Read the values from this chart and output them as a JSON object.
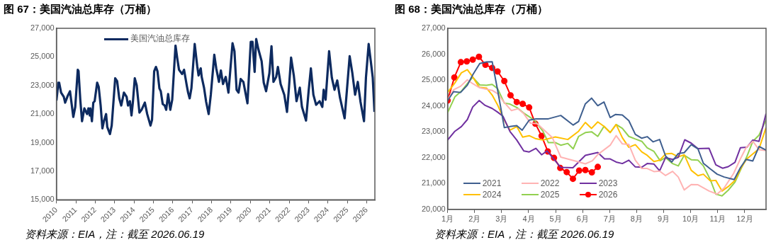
{
  "chart_data": [
    {
      "type": "line",
      "title": "图 67：美国汽油总库存（万桶）",
      "annotations": [
        "资料来源：EIA，注：截至 2026.06.19"
      ],
      "xlim": [
        2010,
        2026.42
      ],
      "xticks": [
        2010,
        2011,
        2012,
        2013,
        2014,
        2015,
        2016,
        2017,
        2018,
        2019,
        2020,
        2021,
        2022,
        2023,
        2024,
        2025,
        2026
      ],
      "ylim": [
        15000,
        27000
      ],
      "yticks": [
        {
          "value": 15000,
          "label": "15,000"
        },
        {
          "value": 17000,
          "label": "17,000"
        },
        {
          "value": 19000,
          "label": "19,000"
        },
        {
          "value": 21000,
          "label": "21,000"
        },
        {
          "value": 23000,
          "label": "23,000"
        },
        {
          "value": 25000,
          "label": "25,000"
        },
        {
          "value": 27000,
          "label": "27,000"
        }
      ],
      "grid": false,
      "legend": "top",
      "series": [
        {
          "name": "美国汽油总库存",
          "color": "#0d2a5f",
          "x": [
            2010.0,
            2010.1,
            2010.14,
            2010.24,
            2010.38,
            2010.45,
            2010.59,
            2010.7,
            2010.87,
            2010.97,
            2011.1,
            2011.14,
            2011.23,
            2011.32,
            2011.44,
            2011.58,
            2011.65,
            2011.72,
            2011.75,
            2011.83,
            2011.9,
            2011.97,
            2012.1,
            2012.18,
            2012.28,
            2012.37,
            2012.45,
            2012.56,
            2012.62,
            2012.76,
            2012.85,
            2013.03,
            2013.13,
            2013.24,
            2013.34,
            2013.48,
            2013.62,
            2013.69,
            2013.79,
            2013.87,
            2013.94,
            2014.04,
            2014.14,
            2014.28,
            2014.39,
            2014.56,
            2014.68,
            2014.85,
            2014.93,
            2015.04,
            2015.13,
            2015.21,
            2015.31,
            2015.38,
            2015.48,
            2015.58,
            2015.66,
            2015.76,
            2015.87,
            2015.97,
            2016.14,
            2016.23,
            2016.32,
            2016.48,
            2016.58,
            2016.72,
            2016.79,
            2016.87,
            2016.96,
            2017.13,
            2017.26,
            2017.33,
            2017.44,
            2017.49,
            2017.61,
            2017.72,
            2017.85,
            2017.96,
            2018.14,
            2018.24,
            2018.38,
            2018.48,
            2018.59,
            2018.73,
            2018.87,
            2019.08,
            2019.18,
            2019.29,
            2019.39,
            2019.5,
            2019.64,
            2019.85,
            2020.02,
            2020.11,
            2020.22,
            2020.3,
            2020.41,
            2020.58,
            2020.69,
            2020.81,
            2020.98,
            2021.09,
            2021.19,
            2021.33,
            2021.42,
            2021.56,
            2021.75,
            2021.89,
            2021.99,
            2022.1,
            2022.24,
            2022.38,
            2022.55,
            2022.66,
            2022.87,
            2023.01,
            2023.12,
            2023.25,
            2023.39,
            2023.57,
            2023.71,
            2023.78,
            2023.88,
            2024.06,
            2024.2,
            2024.34,
            2024.48,
            2024.62,
            2024.86,
            2024.98,
            2025.12,
            2025.26,
            2025.4,
            2025.54,
            2025.68,
            2025.86,
            2025.96,
            2026.1,
            2026.24,
            2026.31,
            2026.4
          ],
          "values": [
            21950,
            23200,
            23200,
            22500,
            22200,
            21800,
            22300,
            22600,
            20800,
            21500,
            24100,
            24000,
            22000,
            20500,
            21400,
            21000,
            21400,
            20900,
            21400,
            20500,
            21800,
            21900,
            23200,
            22900,
            21600,
            20000,
            20500,
            21000,
            20100,
            19600,
            20200,
            23500,
            23300,
            22100,
            21600,
            22500,
            22200,
            21600,
            21900,
            20900,
            21800,
            23500,
            23000,
            21100,
            21300,
            21800,
            21000,
            20200,
            20600,
            24000,
            24300,
            24000,
            22800,
            22600,
            21700,
            21600,
            21300,
            22400,
            21300,
            22000,
            25800,
            24900,
            24100,
            23800,
            24100,
            23000,
            22500,
            22100,
            22800,
            25900,
            24350,
            23700,
            24200,
            23600,
            22850,
            21850,
            21000,
            22350,
            25150,
            24200,
            23250,
            24050,
            23100,
            23600,
            22500,
            25950,
            25400,
            22700,
            22500,
            23450,
            23250,
            21750,
            26050,
            26050,
            23950,
            26250,
            25550,
            24700,
            23200,
            22600,
            23850,
            25750,
            23250,
            23600,
            24300,
            23100,
            22350,
            21150,
            22850,
            24950,
            23700,
            21900,
            22850,
            21500,
            20550,
            22700,
            24200,
            22350,
            21650,
            21900,
            21500,
            22700,
            22000,
            25400,
            23550,
            22700,
            23350,
            22150,
            20700,
            22700,
            25050,
            23850,
            22350,
            23250,
            21850,
            20500,
            23550,
            25900,
            24350,
            23550,
            21150
          ]
        }
      ]
    },
    {
      "type": "line",
      "title": "图 68：美国汽油总库存（万桶）",
      "annotations": [
        "资料来源：EIA，注：截至 2026.06.19"
      ],
      "xlim": [
        1,
        12.79
      ],
      "xticks": [
        {
          "value": 1,
          "label": "1月"
        },
        {
          "value": 2,
          "label": "2月"
        },
        {
          "value": 3,
          "label": "3月"
        },
        {
          "value": 4,
          "label": "4月"
        },
        {
          "value": 5,
          "label": "5月"
        },
        {
          "value": 6,
          "label": "6月"
        },
        {
          "value": 7,
          "label": "7月"
        },
        {
          "value": 8,
          "label": "8月"
        },
        {
          "value": 9,
          "label": "9月"
        },
        {
          "value": 10,
          "label": "10月"
        },
        {
          "value": 11,
          "label": "11月"
        },
        {
          "value": 12,
          "label": "12月"
        }
      ],
      "ylim": [
        20000,
        27000
      ],
      "yticks": [
        {
          "value": 20000,
          "label": "20,000"
        },
        {
          "value": 21000,
          "label": "21,000"
        },
        {
          "value": 22000,
          "label": "22,000"
        },
        {
          "value": 23000,
          "label": "23,000"
        },
        {
          "value": 24000,
          "label": "24,000"
        },
        {
          "value": 25000,
          "label": "25,000"
        },
        {
          "value": 26000,
          "label": "26,000"
        },
        {
          "value": 27000,
          "label": "27,000"
        }
      ],
      "grid": false,
      "legend": "bottom left",
      "series": [
        {
          "name": "2021",
          "color": "#3f5f8f",
          "x": [
            1.0,
            1.22,
            1.48,
            1.73,
            1.93,
            2.19,
            2.44,
            2.65,
            2.85,
            3.1,
            3.31,
            3.56,
            3.76,
            4.02,
            4.27,
            4.73,
            5.19,
            5.65,
            5.85,
            6.1,
            6.33,
            6.56,
            6.79,
            7.02,
            7.22,
            7.47,
            7.71,
            7.95,
            8.19,
            8.39,
            8.61,
            8.85,
            9.07,
            9.3,
            9.54,
            9.76,
            10.02,
            10.27,
            10.47,
            10.73,
            10.98,
            11.24,
            11.61,
            11.84,
            12.05,
            12.3,
            12.53,
            12.79
          ],
          "values": [
            24200,
            24550,
            24520,
            24800,
            25200,
            25640,
            25700,
            25710,
            24620,
            23160,
            23200,
            23240,
            23060,
            23450,
            23500,
            23500,
            23630,
            23260,
            23400,
            24080,
            24300,
            24010,
            24150,
            23550,
            23670,
            23650,
            23430,
            22900,
            22750,
            22810,
            22610,
            22700,
            22060,
            21830,
            22160,
            22190,
            22500,
            22340,
            21780,
            21560,
            21360,
            21250,
            21150,
            21610,
            21930,
            21870,
            22430,
            22290
          ]
        },
        {
          "name": "2022",
          "color": "#ffb3b3",
          "x": [
            1.0,
            1.22,
            1.48,
            1.73,
            1.93,
            2.19,
            2.65,
            2.85,
            3.1,
            3.36,
            3.61,
            3.82,
            4.07,
            4.32,
            4.58,
            4.88,
            5.19,
            5.8,
            6.1,
            6.36,
            6.56,
            7.02,
            7.24,
            7.47,
            7.71,
            7.95,
            8.19,
            8.39,
            8.64,
            8.85,
            9.07,
            9.33,
            9.54,
            9.76,
            10.02,
            10.27,
            10.68,
            10.98,
            11.24,
            11.59,
            11.84,
            12.05,
            12.3,
            12.53,
            12.79
          ],
          "values": [
            24230,
            24620,
            24760,
            25010,
            24860,
            24700,
            24600,
            24470,
            24130,
            23820,
            23890,
            23700,
            23330,
            23310,
            23060,
            22770,
            22020,
            21850,
            21760,
            21880,
            22120,
            22480,
            22850,
            22530,
            22510,
            21900,
            21580,
            21580,
            21460,
            21480,
            21310,
            21470,
            21250,
            20750,
            20960,
            20950,
            20710,
            20590,
            20830,
            21390,
            21950,
            22380,
            22630,
            22310,
            22270
          ]
        },
        {
          "name": "2023",
          "color": "#7030a0",
          "x": [
            1.0,
            1.27,
            1.51,
            1.73,
            1.93,
            2.17,
            2.39,
            2.65,
            2.85,
            3.05,
            3.31,
            3.56,
            3.82,
            4.02,
            4.27,
            4.48,
            4.68,
            5.19,
            5.64,
            6.1,
            6.56,
            6.81,
            7.02,
            7.24,
            7.47,
            7.71,
            7.95,
            8.19,
            8.39,
            8.64,
            8.85,
            9.07,
            9.33,
            9.54,
            9.78,
            10.02,
            10.27,
            10.68,
            10.93,
            11.18,
            11.39,
            11.64,
            11.84,
            12.08,
            12.3,
            12.53,
            12.79
          ],
          "values": [
            22680,
            23020,
            23200,
            23470,
            23960,
            24210,
            24020,
            23900,
            23760,
            23600,
            23010,
            22680,
            22260,
            22220,
            22360,
            22110,
            22260,
            21620,
            21610,
            22090,
            22200,
            21950,
            21950,
            21830,
            21770,
            21900,
            21640,
            21630,
            21770,
            21750,
            21490,
            22000,
            21930,
            22010,
            22690,
            22560,
            22350,
            22360,
            21720,
            21590,
            21650,
            21820,
            22380,
            22400,
            22680,
            22630,
            23700
          ]
        },
        {
          "name": "2024",
          "color": "#ffc000",
          "x": [
            1.0,
            1.27,
            1.51,
            1.73,
            1.93,
            2.17,
            2.44,
            2.65,
            2.85,
            3.1,
            3.31,
            3.56,
            3.78,
            4.02,
            4.27,
            4.53,
            4.99,
            5.45,
            5.85,
            6.1,
            6.33,
            6.56,
            6.79,
            7.02,
            7.24,
            7.47,
            7.71,
            7.95,
            8.19,
            8.39,
            8.64,
            8.85,
            9.07,
            9.3,
            9.54,
            9.76,
            10.02,
            10.27,
            10.47,
            10.73,
            10.93,
            11.16,
            11.39,
            11.64,
            11.84,
            12.08,
            12.3,
            12.53,
            12.79
          ],
          "values": [
            24520,
            24890,
            25280,
            25400,
            25120,
            24720,
            24690,
            24420,
            24040,
            23450,
            23060,
            23200,
            22790,
            22850,
            22730,
            22680,
            22800,
            22700,
            23020,
            23360,
            23130,
            23380,
            23210,
            22970,
            23280,
            22770,
            22400,
            22500,
            22220,
            22090,
            21850,
            21900,
            22140,
            22160,
            22030,
            22110,
            21510,
            21300,
            21360,
            21100,
            21120,
            20710,
            20880,
            21120,
            21560,
            21950,
            22140,
            22340,
            23160
          ]
        },
        {
          "name": "2025",
          "color": "#92d050",
          "x": [
            1.0,
            1.27,
            1.51,
            1.73,
            1.93,
            2.19,
            2.44,
            2.65,
            2.85,
            3.1,
            3.31,
            3.56,
            3.82,
            4.07,
            4.27,
            4.53,
            4.73,
            4.99,
            5.19,
            5.45,
            5.65,
            5.85,
            6.1,
            6.33,
            6.56,
            6.79,
            7.02,
            7.24,
            7.47,
            7.71,
            7.95,
            8.19,
            8.39,
            8.64,
            8.87,
            9.07,
            9.33,
            9.54,
            9.76,
            10.02,
            10.27,
            10.47,
            10.73,
            10.93,
            11.16,
            11.39,
            11.64,
            11.84,
            12.08,
            12.3,
            12.53,
            12.79
          ],
          "values": [
            23740,
            24350,
            24570,
            24860,
            25110,
            24810,
            24800,
            24830,
            24670,
            24110,
            24070,
            23940,
            23720,
            23550,
            23380,
            23020,
            22580,
            22580,
            22480,
            22550,
            22340,
            22820,
            22970,
            23000,
            22820,
            23210,
            22970,
            23280,
            23130,
            22820,
            22720,
            22630,
            22380,
            22240,
            21880,
            22000,
            21770,
            21680,
            22090,
            21920,
            21900,
            21680,
            21140,
            20590,
            20520,
            20740,
            21050,
            21510,
            22040,
            22630,
            22870,
            23450
          ]
        },
        {
          "name": "2026",
          "color": "#ff0000",
          "marker": "circle",
          "x": [
            1.0,
            1.25,
            1.49,
            1.71,
            1.93,
            2.16,
            2.4,
            2.65,
            2.85,
            3.1,
            3.33,
            3.56,
            3.78,
            4.02,
            4.25,
            4.48,
            4.71,
            4.94,
            5.17,
            5.41,
            5.64,
            5.87,
            6.1,
            6.34,
            6.56
          ],
          "values": [
            24210,
            25100,
            25690,
            25720,
            25790,
            25900,
            25590,
            25470,
            25330,
            24960,
            24410,
            24150,
            24080,
            23940,
            23310,
            22840,
            22240,
            21990,
            21600,
            21440,
            21180,
            21500,
            21520,
            21430,
            21640
          ]
        }
      ]
    }
  ]
}
